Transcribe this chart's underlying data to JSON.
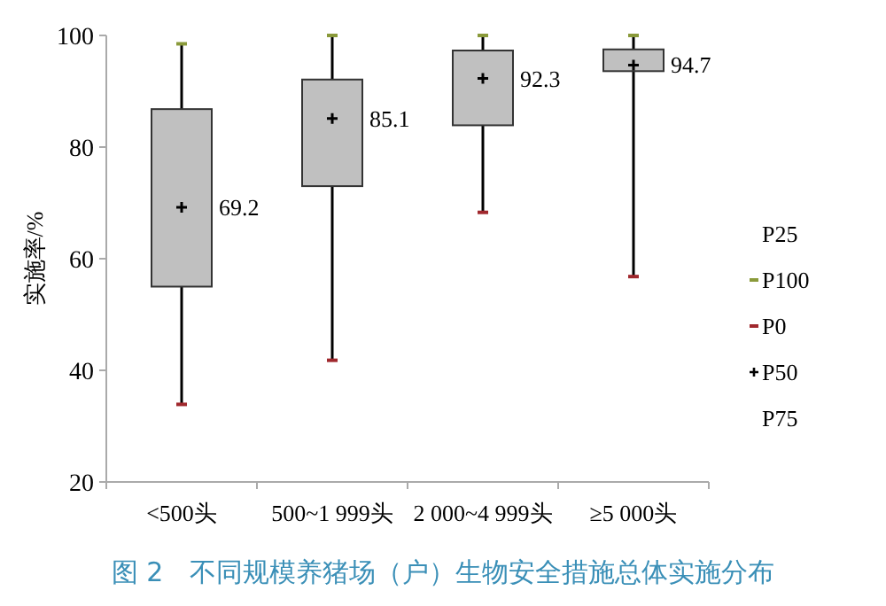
{
  "chart_data": {
    "type": "box",
    "title": "图 2　不同规模养猪场（户）生物安全措施总体实施分布",
    "ylabel": "实施率/%",
    "categories": [
      "<500头",
      "500~1 999头",
      "2 000~4 999头",
      "≥5 000头"
    ],
    "boxes": [
      {
        "low": 33.9,
        "q1": 55.0,
        "median": 69.2,
        "q3": 86.8,
        "high": 98.5
      },
      {
        "low": 41.8,
        "q1": 73.0,
        "median": 85.1,
        "q3": 92.1,
        "high": 100
      },
      {
        "low": 68.3,
        "q1": 83.9,
        "median": 92.3,
        "q3": 97.3,
        "high": 100
      },
      {
        "low": 56.8,
        "q1": 93.6,
        "median": 94.7,
        "q3": 97.5,
        "high": 100
      }
    ],
    "value_labels": [
      "69.2",
      "85.1",
      "92.3",
      "94.7"
    ],
    "color": "#c0c0c0",
    "ylim": [
      20,
      100
    ],
    "yticks": [
      20,
      40,
      60,
      80,
      100
    ],
    "grid": false,
    "annotations": [
      "P25",
      "P100",
      "P0",
      "P50",
      "P75"
    ]
  }
}
